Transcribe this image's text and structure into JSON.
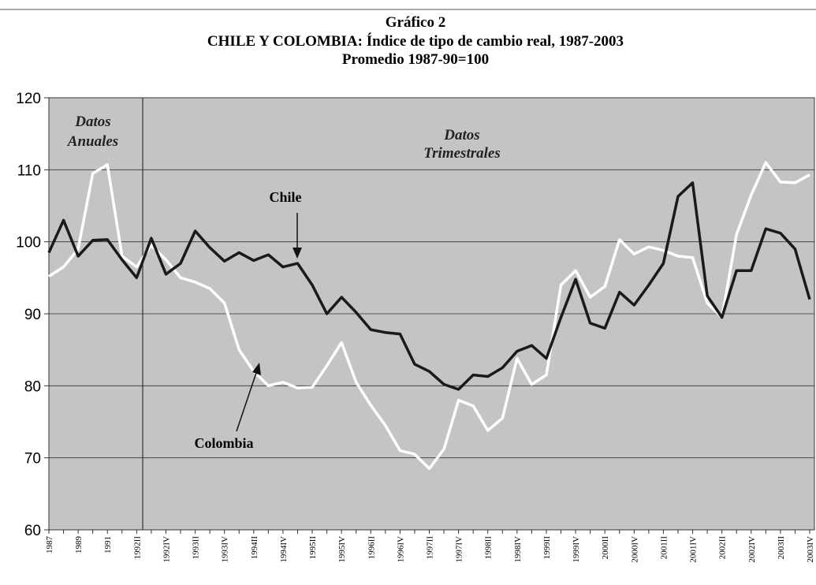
{
  "chart_data": {
    "type": "line",
    "title": [
      "Gráfico 2",
      "CHILE Y COLOMBIA: Índice de tipo de cambio real, 1987-2003",
      "Promedio 1987-90=100"
    ],
    "annotations": [
      "Datos",
      "Anuales",
      "Datos",
      "Trimestrales"
    ],
    "categories": [
      "1987",
      null,
      "1989",
      null,
      "1991",
      null,
      "1992II",
      null,
      "1992IV",
      null,
      "1993II",
      null,
      "1993IV",
      null,
      "1994II",
      null,
      "1994IV",
      null,
      "1995II",
      null,
      "1995IV",
      null,
      "1996II",
      null,
      "1996IV",
      null,
      "1997II",
      null,
      "1997IV",
      null,
      "1998II",
      null,
      "1998IV",
      null,
      "1999II",
      null,
      "1999IV",
      null,
      "2000II",
      null,
      "2000IV",
      null,
      "2001II",
      null,
      "2001IV",
      null,
      "2002II",
      null,
      "2002IV",
      null,
      "2003II",
      null,
      "2003IV"
    ],
    "series": [
      {
        "name": "Chile",
        "color": "#1a1a1a",
        "values": [
          98.5,
          103,
          98,
          100.2,
          100.3,
          97.5,
          95,
          100.5,
          95.5,
          97,
          101.5,
          99.2,
          97.3,
          98.5,
          97.4,
          98.2,
          96.5,
          97,
          94,
          90,
          92.3,
          90.2,
          87.8,
          87.4,
          87.2,
          83,
          82,
          80.2,
          79.5,
          81.5,
          81.3,
          82.5,
          84.8,
          85.6,
          83.8,
          89.5,
          94.8,
          88.7,
          88,
          93,
          91.2,
          94,
          97,
          106.3,
          108.2,
          92.5,
          89.5,
          96,
          96,
          101.8,
          101.2,
          99,
          92
        ]
      },
      {
        "name": "Colombia",
        "color": "#ffffff",
        "values": [
          95.2,
          96.5,
          99,
          109.5,
          110.7,
          98,
          96.5,
          99.5,
          97.5,
          95,
          94.4,
          93.5,
          91.5,
          85,
          82,
          80,
          80.5,
          79.7,
          79.8,
          82.8,
          86,
          80.5,
          77.3,
          74.5,
          71,
          70.5,
          68.5,
          71.2,
          78,
          77.2,
          73.8,
          75.5,
          83.8,
          80.2,
          81.5,
          94,
          96,
          92.3,
          93.8,
          100.3,
          98.3,
          99.3,
          98.8,
          98,
          97.8,
          91.5,
          89.5,
          101,
          106.5,
          111,
          108.3,
          108.2,
          109.3
        ]
      }
    ],
    "ylim": [
      60,
      120
    ],
    "yticks": [
      60,
      70,
      80,
      90,
      100,
      110,
      120
    ],
    "grid": true
  }
}
